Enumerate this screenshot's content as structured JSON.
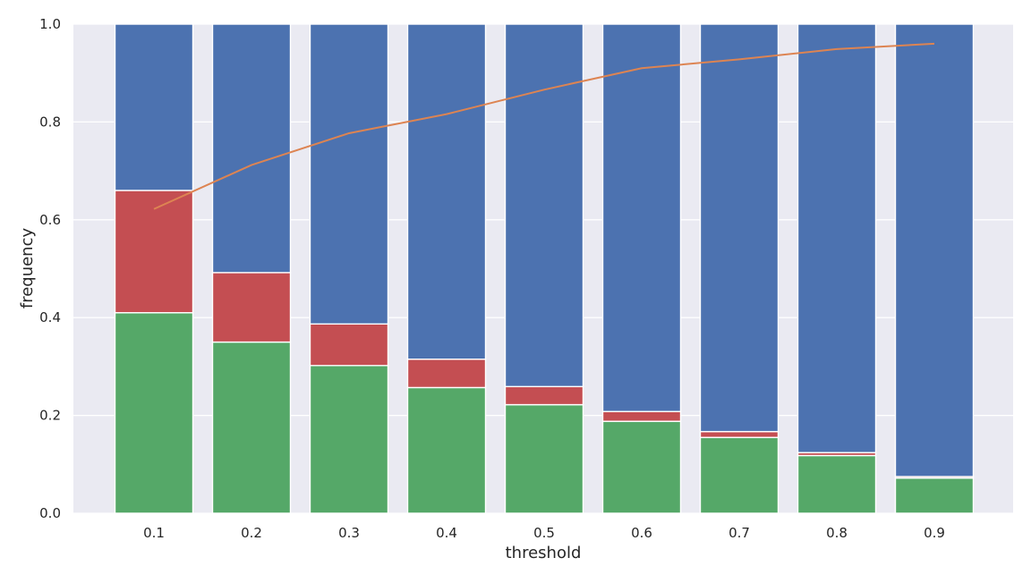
{
  "chart_data": {
    "type": "bar",
    "stacked": true,
    "title": "",
    "xlabel": "threshold",
    "ylabel": "frequency",
    "categories": [
      "0.1",
      "0.2",
      "0.3",
      "0.4",
      "0.5",
      "0.6",
      "0.7",
      "0.8",
      "0.9"
    ],
    "ylim": [
      0,
      1.0
    ],
    "yticks": [
      "0.0",
      "0.2",
      "0.4",
      "0.6",
      "0.8",
      "1.0"
    ],
    "grid": true,
    "legend": "none",
    "series": [
      {
        "kind": "bar",
        "color": "#55a868",
        "values": [
          0.41,
          0.35,
          0.302,
          0.257,
          0.222,
          0.188,
          0.155,
          0.118,
          0.072
        ]
      },
      {
        "kind": "bar",
        "color": "#c44e52",
        "values": [
          0.25,
          0.142,
          0.085,
          0.058,
          0.037,
          0.02,
          0.012,
          0.006,
          0.003
        ]
      },
      {
        "kind": "bar",
        "color": "#4c72b0",
        "values": [
          0.34,
          0.508,
          0.613,
          0.685,
          0.741,
          0.792,
          0.833,
          0.876,
          0.925
        ]
      },
      {
        "kind": "line",
        "color": "#dd8452",
        "values": [
          0.622,
          0.712,
          0.777,
          0.816,
          0.866,
          0.91,
          0.928,
          0.949,
          0.96
        ]
      }
    ]
  }
}
